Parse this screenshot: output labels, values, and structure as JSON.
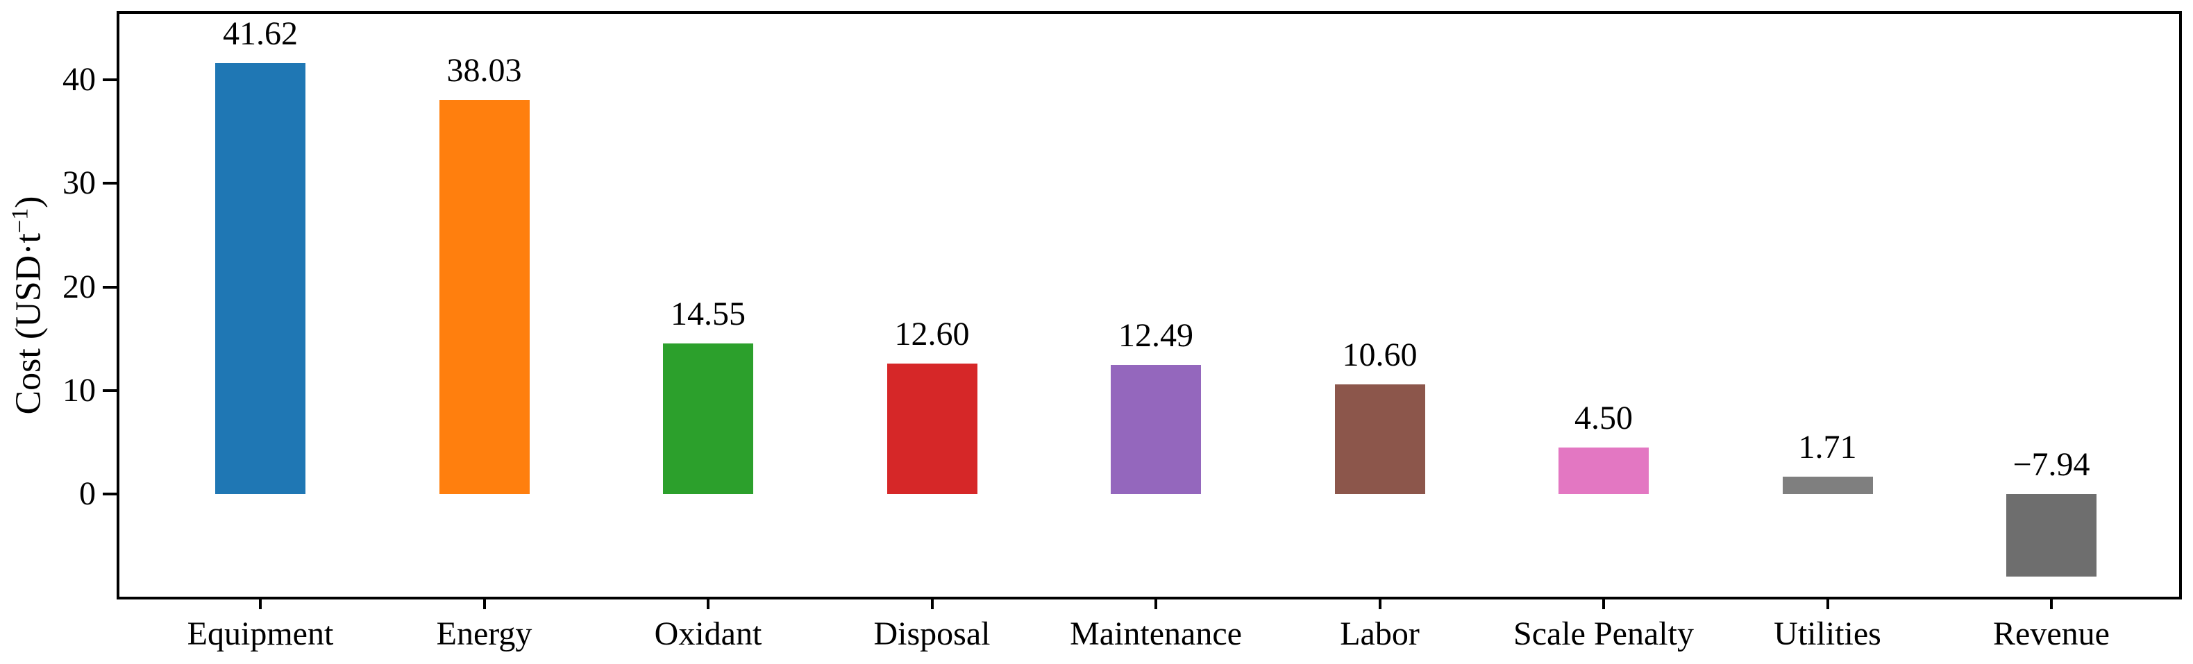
{
  "figure": {
    "background": "#ffffff",
    "axis_color": "#000000",
    "text_color": "#000000",
    "ylabel_parts": {
      "prefix": "Cost (USD·t",
      "superscript": "−1",
      "suffix": ")"
    }
  },
  "chart_data": {
    "type": "bar",
    "title": "",
    "xlabel": "",
    "ylabel": "Cost (USD·t⁻¹)",
    "categories": [
      "Equipment",
      "Energy",
      "Oxidant",
      "Disposal",
      "Maintenance",
      "Labor",
      "Scale Penalty",
      "Utilities",
      "Revenue"
    ],
    "values": [
      41.62,
      38.03,
      14.55,
      12.6,
      12.49,
      10.6,
      4.5,
      1.71,
      -7.94
    ],
    "value_labels": [
      "41.62",
      "38.03",
      "14.55",
      "12.60",
      "12.49",
      "10.60",
      "4.50",
      "1.71",
      "−7.94"
    ],
    "bar_colors": [
      "#1f77b4",
      "#ff7f0e",
      "#2ca02c",
      "#d62728",
      "#9467bd",
      "#8c564b",
      "#e377c2",
      "#7f7f7f",
      "#6e6e6e"
    ],
    "yticks": [
      0,
      10,
      20,
      30,
      40
    ],
    "ytick_labels": [
      "0",
      "10",
      "20",
      "30",
      "40"
    ],
    "ylim": [
      -9.9,
      46.5
    ],
    "grid": false,
    "legend_position": "none"
  }
}
